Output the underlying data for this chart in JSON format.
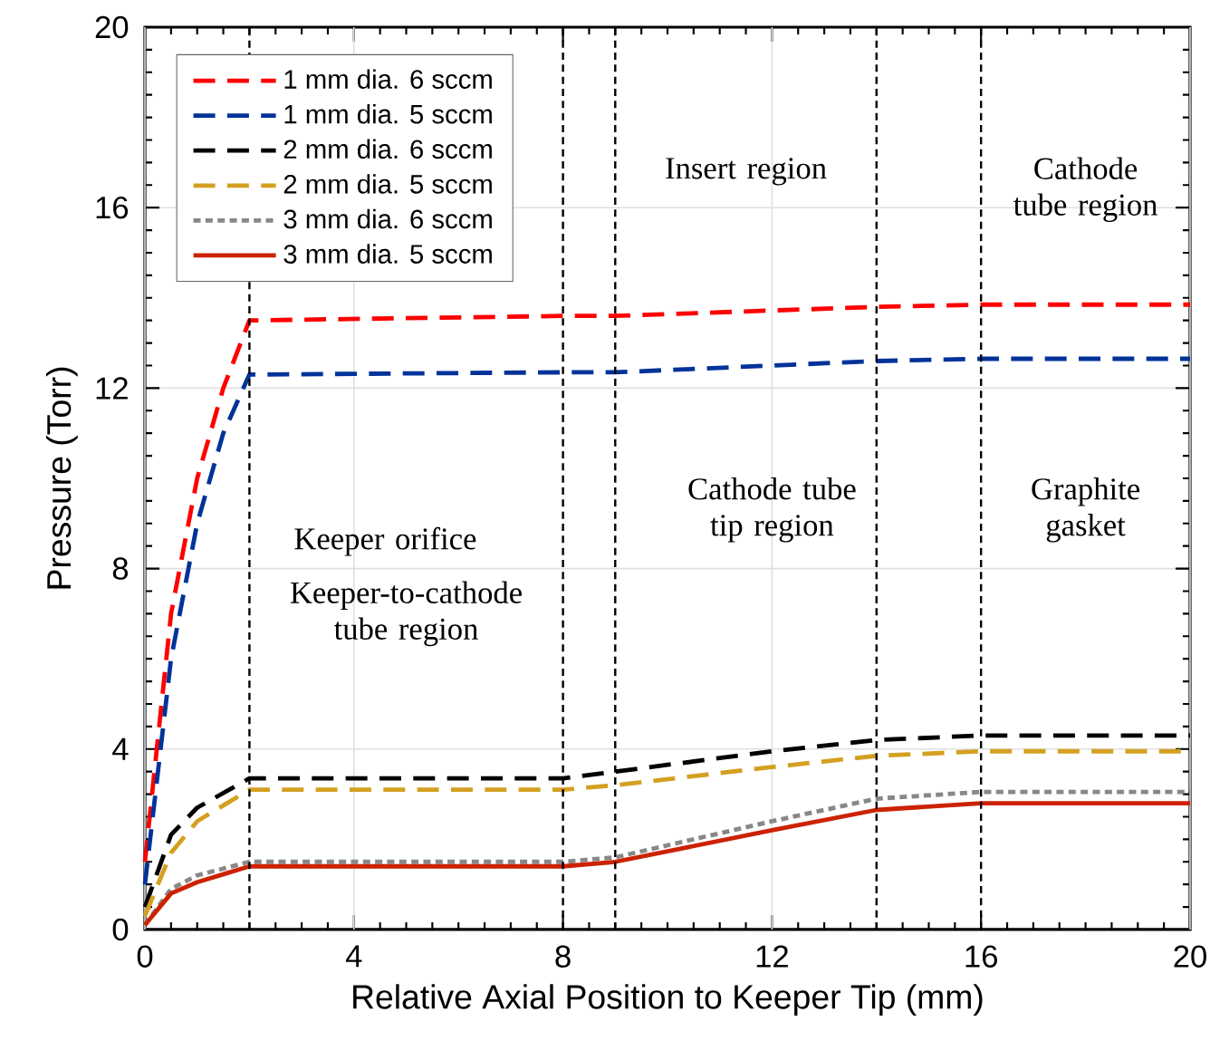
{
  "chart_data": {
    "type": "line",
    "xlabel": "Relative Axial Position to Keeper Tip (mm)",
    "ylabel": "Pressure (Torr)",
    "xlim": [
      0,
      20
    ],
    "ylim": [
      0,
      20
    ],
    "xticks": [
      0,
      4,
      8,
      12,
      16,
      20
    ],
    "yticks": [
      0,
      4,
      8,
      12,
      16,
      20
    ],
    "grid": true,
    "legend": "top left",
    "series": [
      {
        "name": "1 mm dia. 6 sccm",
        "color": "#ff0000",
        "line_style": "dashed",
        "x": [
          0,
          0.5,
          1,
          1.5,
          2,
          8,
          9,
          14,
          16,
          20
        ],
        "values": [
          1.5,
          7,
          10,
          12,
          13.5,
          13.6,
          13.6,
          13.8,
          13.85,
          13.85
        ]
      },
      {
        "name": "1 mm dia. 5 sccm",
        "color": "#003399",
        "line_style": "dashed",
        "x": [
          0,
          0.5,
          1,
          1.5,
          2,
          8,
          9,
          14,
          16,
          20
        ],
        "values": [
          1,
          6,
          9,
          11,
          12.3,
          12.35,
          12.35,
          12.6,
          12.65,
          12.65
        ]
      },
      {
        "name": "2 mm dia. 6 sccm",
        "color": "#000000",
        "line_style": "dashed",
        "x": [
          0,
          0.5,
          1,
          2,
          8,
          9,
          12,
          14,
          16,
          20
        ],
        "values": [
          0.5,
          2.1,
          2.7,
          3.35,
          3.35,
          3.5,
          3.95,
          4.2,
          4.3,
          4.3
        ]
      },
      {
        "name": "2 mm dia. 5 sccm",
        "color": "#d4a020",
        "line_style": "dashed",
        "x": [
          0,
          0.5,
          1,
          2,
          8,
          9,
          12,
          14,
          16,
          20
        ],
        "values": [
          0.3,
          1.7,
          2.4,
          3.1,
          3.1,
          3.2,
          3.6,
          3.85,
          3.95,
          3.95
        ]
      },
      {
        "name": "3 mm dia. 6 sccm",
        "color": "#888888",
        "line_style": "dotted",
        "x": [
          0,
          0.5,
          1,
          2,
          8,
          9,
          12,
          14,
          16,
          20
        ],
        "values": [
          0.1,
          0.9,
          1.2,
          1.5,
          1.5,
          1.6,
          2.4,
          2.9,
          3.05,
          3.05
        ]
      },
      {
        "name": "3 mm dia. 5 sccm",
        "color": "#cc2200",
        "line_style": "solid",
        "x": [
          0,
          0.5,
          1,
          2,
          8,
          9,
          12,
          14,
          16,
          20
        ],
        "values": [
          0.1,
          0.8,
          1.05,
          1.4,
          1.4,
          1.5,
          2.2,
          2.65,
          2.8,
          2.8
        ]
      }
    ],
    "ref_lines": [
      {
        "axis": "x",
        "value": 2,
        "color": "#000000",
        "line_style": "dashed"
      },
      {
        "axis": "x",
        "value": 8,
        "color": "#000000",
        "line_style": "dashed"
      },
      {
        "axis": "x",
        "value": 9,
        "color": "#000000",
        "line_style": "dashed"
      },
      {
        "axis": "x",
        "value": 14,
        "color": "#000000",
        "line_style": "dashed"
      },
      {
        "axis": "x",
        "value": 16,
        "color": "#000000",
        "line_style": "dashed"
      }
    ],
    "annotations": [
      "Insert region",
      "Cathode tube region",
      "Keeper orifice",
      "Keeper-to-cathode tube region",
      "Cathode tube tip region",
      "Graphite gasket"
    ]
  }
}
